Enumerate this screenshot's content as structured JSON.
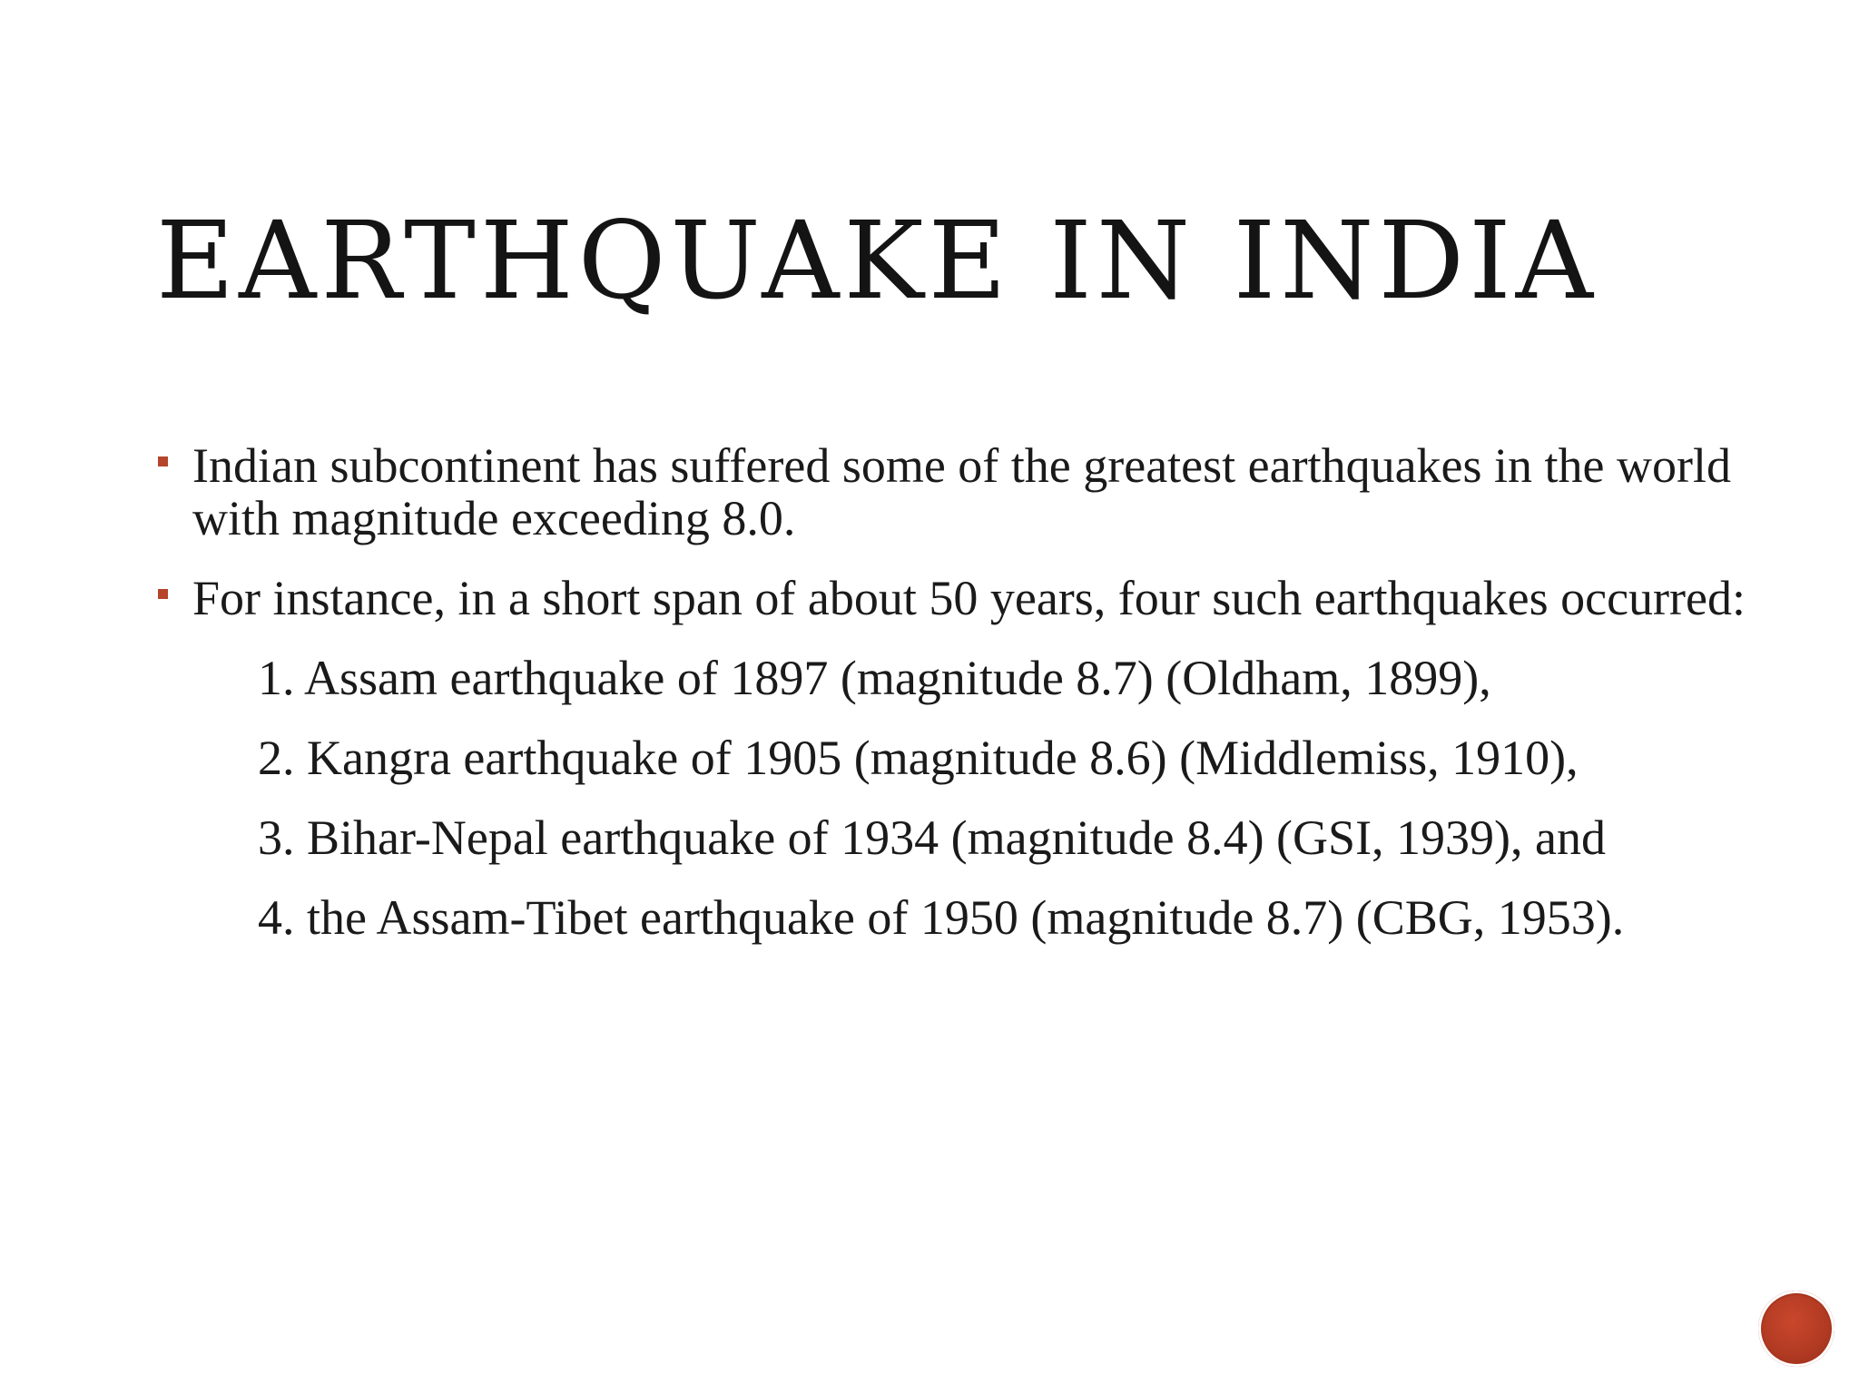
{
  "slide": {
    "title": "EARTHQUAKE IN INDIA",
    "bullets": [
      "Indian subcontinent has suffered some of the greatest earthquakes in the world with magnitude exceeding 8.0.",
      "For instance, in a short span of about 50 years, four such earthquakes occurred:"
    ],
    "items": [
      "1. Assam earthquake of 1897 (magnitude 8.7) (Oldham, 1899),",
      "2. Kangra earthquake of 1905 (magnitude 8.6) (Middlemiss, 1910),",
      "3. Bihar-Nepal earthquake of 1934 (magnitude 8.4) (GSI, 1939), and",
      "4. the Assam-Tibet earthquake of 1950 (magnitude 8.7) (CBG, 1953)."
    ]
  },
  "colors": {
    "accent": "#b5452b",
    "text": "#1a1a1a",
    "background": "#ffffff"
  },
  "icons": {
    "bullet_marker": "square-bullet-icon",
    "nav_button": "circle-button-icon"
  }
}
